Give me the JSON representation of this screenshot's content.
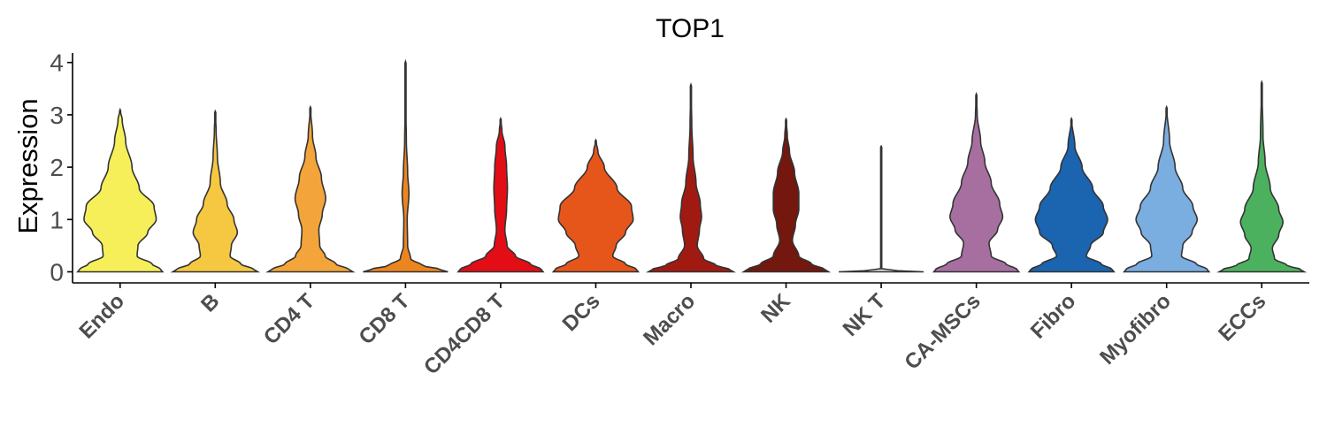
{
  "chart_data": {
    "type": "violin",
    "title": "TOP1",
    "xlabel": "",
    "ylabel": "Expression",
    "ylim": [
      -0.2,
      4.2
    ],
    "yticks": [
      0,
      1,
      2,
      3,
      4
    ],
    "grid": false,
    "legend": "none",
    "categories": [
      "Endo",
      "B",
      "CD4 T",
      "CD8 T",
      "CD4CD8 T",
      "DCs",
      "Macro",
      "NK",
      "NK T",
      "CA-MSCs",
      "Fibro",
      "Myofibro",
      "ECCs"
    ],
    "series": [
      {
        "category": "Endo",
        "color": "#f7ef5a",
        "max": 3.1,
        "profile": [
          [
            0,
            1.0
          ],
          [
            0.05,
            0.95
          ],
          [
            0.15,
            0.75
          ],
          [
            0.3,
            0.4
          ],
          [
            0.5,
            0.42
          ],
          [
            0.75,
            0.65
          ],
          [
            1.0,
            0.85
          ],
          [
            1.25,
            0.8
          ],
          [
            1.6,
            0.45
          ],
          [
            2.0,
            0.28
          ],
          [
            2.5,
            0.13
          ],
          [
            2.9,
            0.05
          ],
          [
            3.1,
            0.0
          ]
        ]
      },
      {
        "category": "B",
        "color": "#f6c842",
        "max": 3.07,
        "profile": [
          [
            0,
            1.0
          ],
          [
            0.05,
            0.9
          ],
          [
            0.15,
            0.6
          ],
          [
            0.3,
            0.35
          ],
          [
            0.5,
            0.38
          ],
          [
            0.75,
            0.52
          ],
          [
            1.0,
            0.44
          ],
          [
            1.3,
            0.28
          ],
          [
            1.7,
            0.12
          ],
          [
            2.2,
            0.05
          ],
          [
            2.7,
            0.02
          ],
          [
            3.07,
            0.0
          ]
        ]
      },
      {
        "category": "CD4 T",
        "color": "#f3a43a",
        "max": 3.15,
        "profile": [
          [
            0,
            1.0
          ],
          [
            0.05,
            0.9
          ],
          [
            0.15,
            0.6
          ],
          [
            0.3,
            0.35
          ],
          [
            0.5,
            0.22
          ],
          [
            0.8,
            0.2
          ],
          [
            1.1,
            0.28
          ],
          [
            1.4,
            0.36
          ],
          [
            1.8,
            0.26
          ],
          [
            2.2,
            0.13
          ],
          [
            2.6,
            0.05
          ],
          [
            3.15,
            0.0
          ]
        ]
      },
      {
        "category": "CD8 T",
        "color": "#ec8520",
        "max": 4.02,
        "profile": [
          [
            0,
            1.0
          ],
          [
            0.05,
            0.8
          ],
          [
            0.12,
            0.4
          ],
          [
            0.25,
            0.12
          ],
          [
            0.5,
            0.05
          ],
          [
            1.0,
            0.04
          ],
          [
            1.5,
            0.08
          ],
          [
            1.9,
            0.05
          ],
          [
            2.5,
            0.02
          ],
          [
            3.2,
            0.005
          ],
          [
            4.02,
            0.0
          ]
        ]
      },
      {
        "category": "CD4CD8 T",
        "color": "#e30d15",
        "max": 2.93,
        "profile": [
          [
            0,
            1.0
          ],
          [
            0.05,
            0.95
          ],
          [
            0.15,
            0.7
          ],
          [
            0.3,
            0.35
          ],
          [
            0.5,
            0.15
          ],
          [
            0.8,
            0.1
          ],
          [
            1.2,
            0.14
          ],
          [
            1.6,
            0.16
          ],
          [
            2.0,
            0.14
          ],
          [
            2.4,
            0.1
          ],
          [
            2.7,
            0.03
          ],
          [
            2.93,
            0.0
          ]
        ]
      },
      {
        "category": "DCs",
        "color": "#e6561b",
        "max": 2.52,
        "profile": [
          [
            0,
            1.0
          ],
          [
            0.05,
            0.95
          ],
          [
            0.15,
            0.7
          ],
          [
            0.3,
            0.4
          ],
          [
            0.5,
            0.48
          ],
          [
            0.75,
            0.7
          ],
          [
            1.0,
            0.88
          ],
          [
            1.25,
            0.84
          ],
          [
            1.6,
            0.5
          ],
          [
            2.0,
            0.2
          ],
          [
            2.3,
            0.05
          ],
          [
            2.52,
            0.0
          ]
        ]
      },
      {
        "category": "Macro",
        "color": "#a11a12",
        "max": 3.58,
        "profile": [
          [
            0,
            1.0
          ],
          [
            0.05,
            0.9
          ],
          [
            0.12,
            0.6
          ],
          [
            0.25,
            0.3
          ],
          [
            0.5,
            0.15
          ],
          [
            0.8,
            0.2
          ],
          [
            1.05,
            0.25
          ],
          [
            1.3,
            0.22
          ],
          [
            1.7,
            0.12
          ],
          [
            2.2,
            0.05
          ],
          [
            2.8,
            0.02
          ],
          [
            3.58,
            0.0
          ]
        ]
      },
      {
        "category": "NK",
        "color": "#73170f",
        "max": 2.92,
        "profile": [
          [
            0,
            1.0
          ],
          [
            0.05,
            0.9
          ],
          [
            0.15,
            0.6
          ],
          [
            0.3,
            0.3
          ],
          [
            0.6,
            0.15
          ],
          [
            0.9,
            0.22
          ],
          [
            1.2,
            0.3
          ],
          [
            1.5,
            0.3
          ],
          [
            1.9,
            0.2
          ],
          [
            2.3,
            0.08
          ],
          [
            2.6,
            0.03
          ],
          [
            2.92,
            0.0
          ]
        ]
      },
      {
        "category": "NK T",
        "color": "#d9d9d9",
        "max": 2.4,
        "profile": [
          [
            0,
            1.0
          ],
          [
            0.02,
            0.4
          ],
          [
            0.06,
            0.01
          ],
          [
            0.5,
            0.004
          ],
          [
            1.0,
            0.004
          ],
          [
            1.6,
            0.004
          ],
          [
            2.0,
            0.002
          ],
          [
            2.4,
            0.0
          ]
        ]
      },
      {
        "category": "CA-MSCs",
        "color": "#a76fa0",
        "max": 3.4,
        "profile": [
          [
            0,
            1.0
          ],
          [
            0.05,
            0.95
          ],
          [
            0.15,
            0.7
          ],
          [
            0.3,
            0.35
          ],
          [
            0.55,
            0.3
          ],
          [
            0.8,
            0.5
          ],
          [
            1.05,
            0.62
          ],
          [
            1.3,
            0.55
          ],
          [
            1.7,
            0.35
          ],
          [
            2.1,
            0.2
          ],
          [
            2.5,
            0.1
          ],
          [
            3.0,
            0.02
          ],
          [
            3.4,
            0.0
          ]
        ]
      },
      {
        "category": "Fibro",
        "color": "#1a64b0",
        "max": 2.93,
        "profile": [
          [
            0,
            1.0
          ],
          [
            0.05,
            0.95
          ],
          [
            0.15,
            0.7
          ],
          [
            0.3,
            0.35
          ],
          [
            0.5,
            0.45
          ],
          [
            0.75,
            0.75
          ],
          [
            1.0,
            0.85
          ],
          [
            1.25,
            0.75
          ],
          [
            1.6,
            0.5
          ],
          [
            2.0,
            0.25
          ],
          [
            2.4,
            0.08
          ],
          [
            2.93,
            0.0
          ]
        ]
      },
      {
        "category": "Myofibro",
        "color": "#7aade0",
        "max": 3.15,
        "profile": [
          [
            0,
            1.0
          ],
          [
            0.05,
            0.95
          ],
          [
            0.15,
            0.7
          ],
          [
            0.3,
            0.35
          ],
          [
            0.5,
            0.38
          ],
          [
            0.75,
            0.6
          ],
          [
            1.0,
            0.72
          ],
          [
            1.25,
            0.62
          ],
          [
            1.6,
            0.38
          ],
          [
            2.0,
            0.2
          ],
          [
            2.5,
            0.07
          ],
          [
            3.15,
            0.0
          ]
        ]
      },
      {
        "category": "ECCs",
        "color": "#4cb15f",
        "max": 3.63,
        "profile": [
          [
            0,
            1.0
          ],
          [
            0.05,
            0.9
          ],
          [
            0.12,
            0.6
          ],
          [
            0.25,
            0.3
          ],
          [
            0.45,
            0.25
          ],
          [
            0.7,
            0.4
          ],
          [
            0.95,
            0.5
          ],
          [
            1.2,
            0.4
          ],
          [
            1.6,
            0.2
          ],
          [
            2.1,
            0.08
          ],
          [
            2.6,
            0.03
          ],
          [
            3.63,
            0.0
          ]
        ]
      }
    ]
  }
}
